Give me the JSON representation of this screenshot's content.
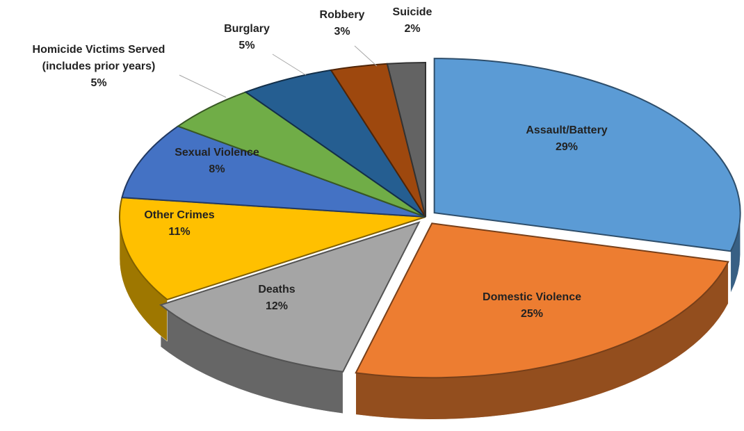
{
  "chart_data": {
    "type": "pie",
    "categories": [
      "Assault/Battery",
      "Domestic Violence",
      "Deaths",
      "Other Crimes",
      "Sexual Violence",
      "Homicide Victims Served\n(includes prior years)",
      "Burglary",
      "Robbery",
      "Suicide"
    ],
    "values": [
      29,
      25,
      12,
      11,
      8,
      5,
      5,
      3,
      2
    ],
    "value_labels": [
      "29%",
      "25%",
      "12%",
      "11%",
      "8%",
      "5%",
      "5%",
      "3%",
      "2%"
    ],
    "colors": [
      "#5b9bd5",
      "#ed7d31",
      "#a5a5a5",
      "#ffc000",
      "#4472c4",
      "#70ad47",
      "#255e91",
      "#9e480e",
      "#636363"
    ]
  }
}
